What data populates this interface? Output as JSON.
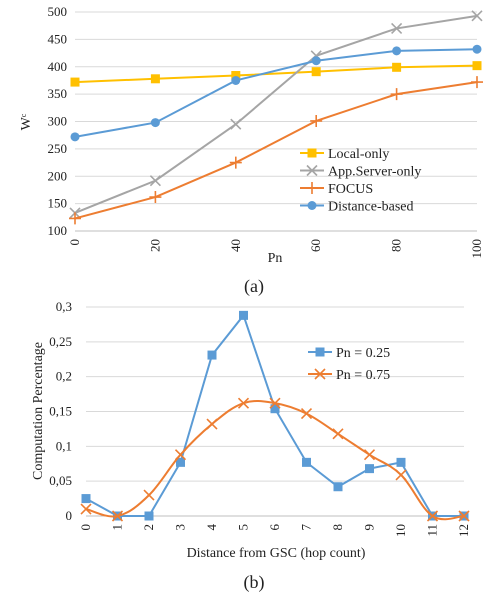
{
  "chart_data": [
    {
      "type": "line",
      "caption": "(a)",
      "title": "",
      "xlabel": "Pn",
      "ylabel": "Wᶜ",
      "x": [
        0,
        20,
        40,
        60,
        80,
        100
      ],
      "xlim": [
        0,
        100
      ],
      "ylim": [
        100,
        500
      ],
      "yticks": [
        100,
        150,
        200,
        250,
        300,
        350,
        400,
        450,
        500
      ],
      "grid": "horizontal",
      "legend_position": "bottom-right",
      "series": [
        {
          "name": "Local-only",
          "color": "#FFC000",
          "marker": "square",
          "values": [
            372,
            378,
            384,
            391,
            399,
            402
          ]
        },
        {
          "name": "App.Server-only",
          "color": "#A5A5A5",
          "marker": "x",
          "values": [
            133,
            192,
            295,
            420,
            470,
            493
          ]
        },
        {
          "name": "FOCUS",
          "color": "#ED7D31",
          "marker": "plus",
          "values": [
            123,
            162,
            225,
            301,
            350,
            372
          ]
        },
        {
          "name": "Distance-based",
          "color": "#5B9BD5",
          "marker": "circle",
          "values": [
            272,
            298,
            375,
            411,
            429,
            432
          ]
        }
      ]
    },
    {
      "type": "line",
      "caption": "(b)",
      "title": "",
      "xlabel": "Distance from GSC (hop count)",
      "ylabel": "Computation Percentage",
      "categories": [
        "0",
        "1",
        "2",
        "3",
        "4",
        "5",
        "6",
        "7",
        "8",
        "9",
        "10",
        "11",
        "12"
      ],
      "ylim": [
        0,
        0.3
      ],
      "yticks": [
        "0",
        "0,05",
        "0,1",
        "0,15",
        "0,2",
        "0,25",
        "0,3"
      ],
      "grid": "horizontal",
      "legend_position": "top-right",
      "series": [
        {
          "name": "Pn = 0.25",
          "color": "#5B9BD5",
          "marker": "square",
          "values": [
            0.025,
            0.0,
            0.0,
            0.077,
            0.231,
            0.288,
            0.154,
            0.077,
            0.042,
            0.068,
            0.077,
            0.0,
            0.0
          ]
        },
        {
          "name": "Pn = 0.75",
          "color": "#ED7D31",
          "marker": "x",
          "values": [
            0.01,
            0.0,
            0.03,
            0.088,
            0.132,
            0.162,
            0.162,
            0.147,
            0.118,
            0.088,
            0.059,
            0.0,
            0.0
          ]
        }
      ]
    }
  ]
}
